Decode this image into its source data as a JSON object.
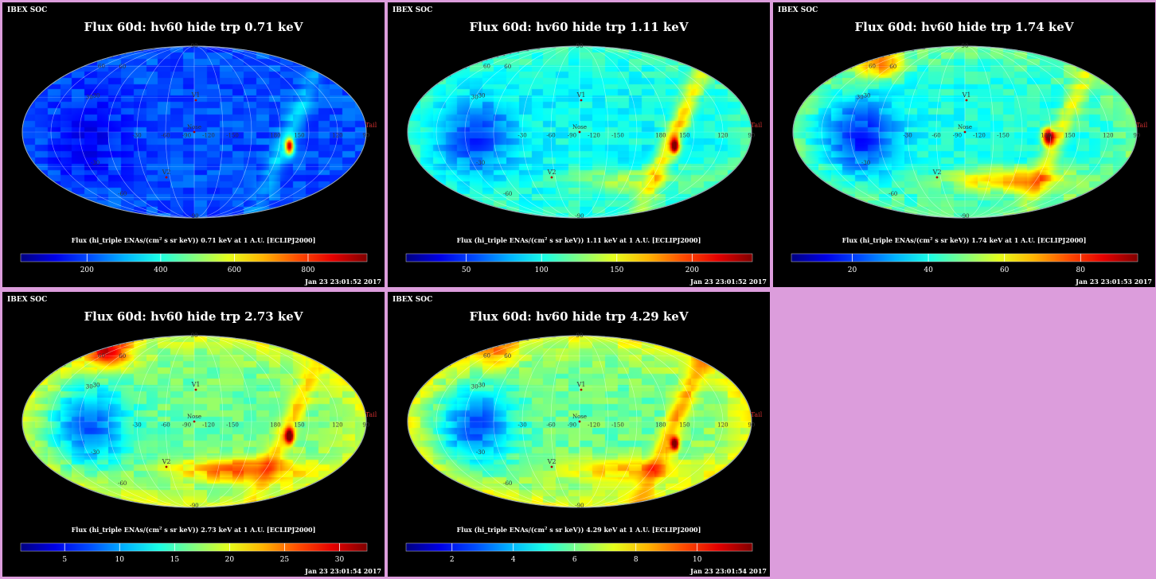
{
  "background_color": "#dc9ddc",
  "panel_labels": {
    "brand": "IBEX SOC",
    "cb_prefix": "Flux (hi_triple ENAs/(cm",
    "cb_sup": "2",
    "cb_middle": " s sr keV)) ",
    "cb_suffix": " at 1 A.U. [ECLIPJ2000]"
  },
  "map_labels": {
    "v1": "V1",
    "v2": "V2",
    "nose": "Nose",
    "tail": "Tail",
    "lon_labels": [
      "60",
      "30",
      "-30",
      "-60",
      "-90",
      "-120",
      "-150",
      "180",
      "150",
      "120",
      "90"
    ],
    "lat_labels": [
      "-30",
      "-60",
      "30",
      "60",
      "90",
      "-90"
    ]
  },
  "chart_data": [
    {
      "type": "heatmap",
      "title": "Flux 60d: hv60 hide trp 0.71 keV",
      "energy": "0.71 keV",
      "projection": "mollweide",
      "colorbar_ticks": [
        200,
        400,
        600,
        800
      ],
      "colorbar_range": [
        20,
        960
      ],
      "timestamp": "Jan 23 23:01:52 2017"
    },
    {
      "type": "heatmap",
      "title": "Flux 60d: hv60 hide trp 1.11 keV",
      "energy": "1.11 keV",
      "projection": "mollweide",
      "colorbar_ticks": [
        50,
        100,
        150,
        200
      ],
      "colorbar_range": [
        10,
        240
      ],
      "timestamp": "Jan 23 23:01:52 2017"
    },
    {
      "type": "heatmap",
      "title": "Flux 60d: hv60 hide trp 1.74 keV",
      "energy": "1.74 keV",
      "projection": "mollweide",
      "colorbar_ticks": [
        20,
        40,
        60,
        80
      ],
      "colorbar_range": [
        4,
        95
      ],
      "timestamp": "Jan 23 23:01:53 2017"
    },
    {
      "type": "heatmap",
      "title": "Flux 60d: hv60 hide trp 2.73 keV",
      "energy": "2.73 keV",
      "projection": "mollweide",
      "colorbar_ticks": [
        5,
        10,
        15,
        20,
        25,
        30
      ],
      "colorbar_range": [
        1,
        32.5
      ],
      "timestamp": "Jan 23 23:01:54 2017"
    },
    {
      "type": "heatmap",
      "title": "Flux 60d: hv60 hide trp 4.29 keV",
      "energy": "4.29 keV",
      "projection": "mollweide",
      "colorbar_ticks": [
        2,
        4,
        6,
        8,
        10
      ],
      "colorbar_range": [
        0.5,
        11.8
      ],
      "timestamp": "Jan 23 23:01:54 2017"
    }
  ]
}
